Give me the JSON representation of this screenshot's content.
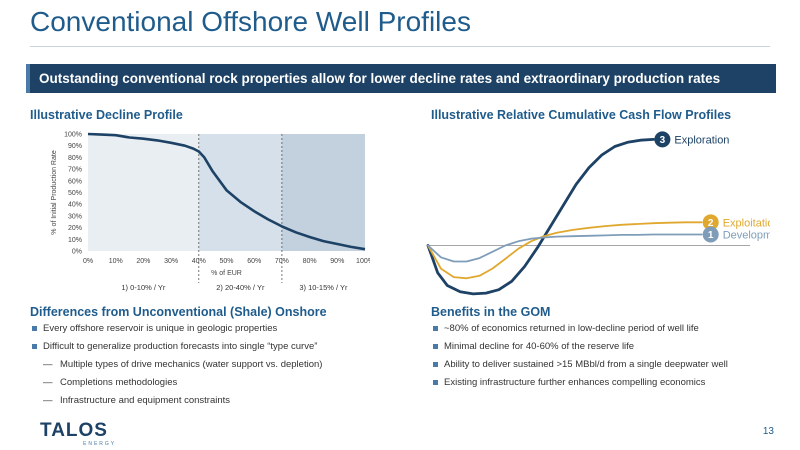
{
  "header": {
    "title": "Conventional Offshore Well Profiles",
    "banner": "Outstanding conventional rock properties allow for lower decline rates and extraordinary production rates"
  },
  "left_section": {
    "title": "Illustrative Decline Profile"
  },
  "right_section": {
    "title": "Illustrative Relative Cumulative Cash Flow Profiles"
  },
  "chart_data": [
    {
      "type": "line",
      "title": "",
      "xlabel": "% of EUR",
      "ylabel": "% of Initial Production Rate",
      "x_ticks": [
        "0%",
        "10%",
        "20%",
        "30%",
        "40%",
        "50%",
        "60%",
        "70%",
        "80%",
        "90%",
        "100%"
      ],
      "y_ticks": [
        "0%",
        "10%",
        "20%",
        "30%",
        "40%",
        "50%",
        "60%",
        "70%",
        "80%",
        "90%",
        "100%"
      ],
      "xlim": [
        0,
        100
      ],
      "ylim": [
        0,
        100
      ],
      "x": [
        0,
        5,
        10,
        15,
        20,
        25,
        30,
        35,
        38,
        40,
        42,
        45,
        50,
        55,
        60,
        65,
        70,
        75,
        80,
        85,
        90,
        95,
        100
      ],
      "y": [
        100,
        99.5,
        99,
        97,
        96,
        94.5,
        92.5,
        90,
        87.5,
        85,
        80,
        68,
        52,
        42,
        34,
        27,
        21,
        16,
        12,
        8.5,
        6,
        3.5,
        1.5
      ],
      "regions": [
        {
          "label": "1) 0-10% / Yr",
          "from": 0,
          "to": 40
        },
        {
          "label": "2) 20-40% / Yr",
          "from": 40,
          "to": 70
        },
        {
          "label": "3) 10-15% / Yr",
          "from": 70,
          "to": 100
        }
      ],
      "region_colors": [
        "#e9eef3",
        "#d6e0ea",
        "#c3d1df"
      ],
      "line_color": "#1d4265"
    },
    {
      "type": "line",
      "title": "",
      "xlabel": "",
      "ylabel": "",
      "xlim": [
        0,
        100
      ],
      "ylim": [
        -1.2,
        2.6
      ],
      "series": [
        {
          "name": "Exploration",
          "number": "3",
          "color": "#1d4265",
          "x": [
            0,
            3,
            6,
            10,
            14,
            18,
            22,
            26,
            30,
            34,
            38,
            42,
            46,
            50,
            54,
            58,
            62,
            66,
            70
          ],
          "y": [
            0,
            -0.65,
            -0.95,
            -1.1,
            -1.15,
            -1.13,
            -1.05,
            -0.85,
            -0.5,
            -0.05,
            0.45,
            0.95,
            1.45,
            1.85,
            2.15,
            2.35,
            2.45,
            2.5,
            2.52
          ]
        },
        {
          "name": "Exploitation",
          "number": "2",
          "color": "#e0a82e",
          "x": [
            0,
            4,
            8,
            12,
            16,
            20,
            24,
            28,
            32,
            36,
            40,
            45,
            50,
            55,
            60,
            65,
            70,
            75,
            80,
            85
          ],
          "y": [
            0,
            -0.55,
            -0.75,
            -0.78,
            -0.72,
            -0.55,
            -0.32,
            -0.08,
            0.1,
            0.22,
            0.3,
            0.37,
            0.42,
            0.46,
            0.49,
            0.51,
            0.53,
            0.54,
            0.55,
            0.55
          ]
        },
        {
          "name": "Development",
          "number": "1",
          "color": "#7f9db9",
          "x": [
            0,
            4,
            8,
            12,
            16,
            20,
            24,
            28,
            32,
            36,
            40,
            45,
            50,
            55,
            60,
            65,
            70,
            75,
            80,
            85
          ],
          "y": [
            0,
            -0.28,
            -0.38,
            -0.38,
            -0.3,
            -0.15,
            0.0,
            0.1,
            0.16,
            0.19,
            0.21,
            0.22,
            0.23,
            0.24,
            0.25,
            0.25,
            0.26,
            0.26,
            0.26,
            0.26
          ]
        }
      ],
      "zero_line": true
    }
  ],
  "bottom_left": {
    "title": "Differences from Unconventional (Shale) Onshore",
    "bullets": [
      {
        "text": "Every offshore reservoir is unique in geologic properties",
        "level": 1
      },
      {
        "text": "Difficult to generalize production forecasts into single “type curve”",
        "level": 1
      },
      {
        "text": "Multiple types of drive mechanics (water support vs. depletion)",
        "level": 2
      },
      {
        "text": "Completions methodologies",
        "level": 2
      },
      {
        "text": "Infrastructure and equipment constraints",
        "level": 2
      }
    ]
  },
  "bottom_right": {
    "title": "Benefits in the GOM",
    "bullets": [
      {
        "text": "~80% of economics returned in low-decline period of well life",
        "level": 1
      },
      {
        "text": "Minimal decline for 40-60% of the reserve life",
        "level": 1
      },
      {
        "text": "Ability to deliver sustained >15 MBbl/d from a single deepwater well",
        "level": 1
      },
      {
        "text": "Existing infrastructure further enhances compelling economics",
        "level": 1
      }
    ]
  },
  "footer": {
    "logo_text": "TALOS",
    "logo_subtext": "ENERGY",
    "page_number": "13"
  },
  "colors": {
    "title_blue": "#1f5c8c",
    "banner_navy": "#1d4265",
    "bullet_blue": "#4a7aa8"
  }
}
